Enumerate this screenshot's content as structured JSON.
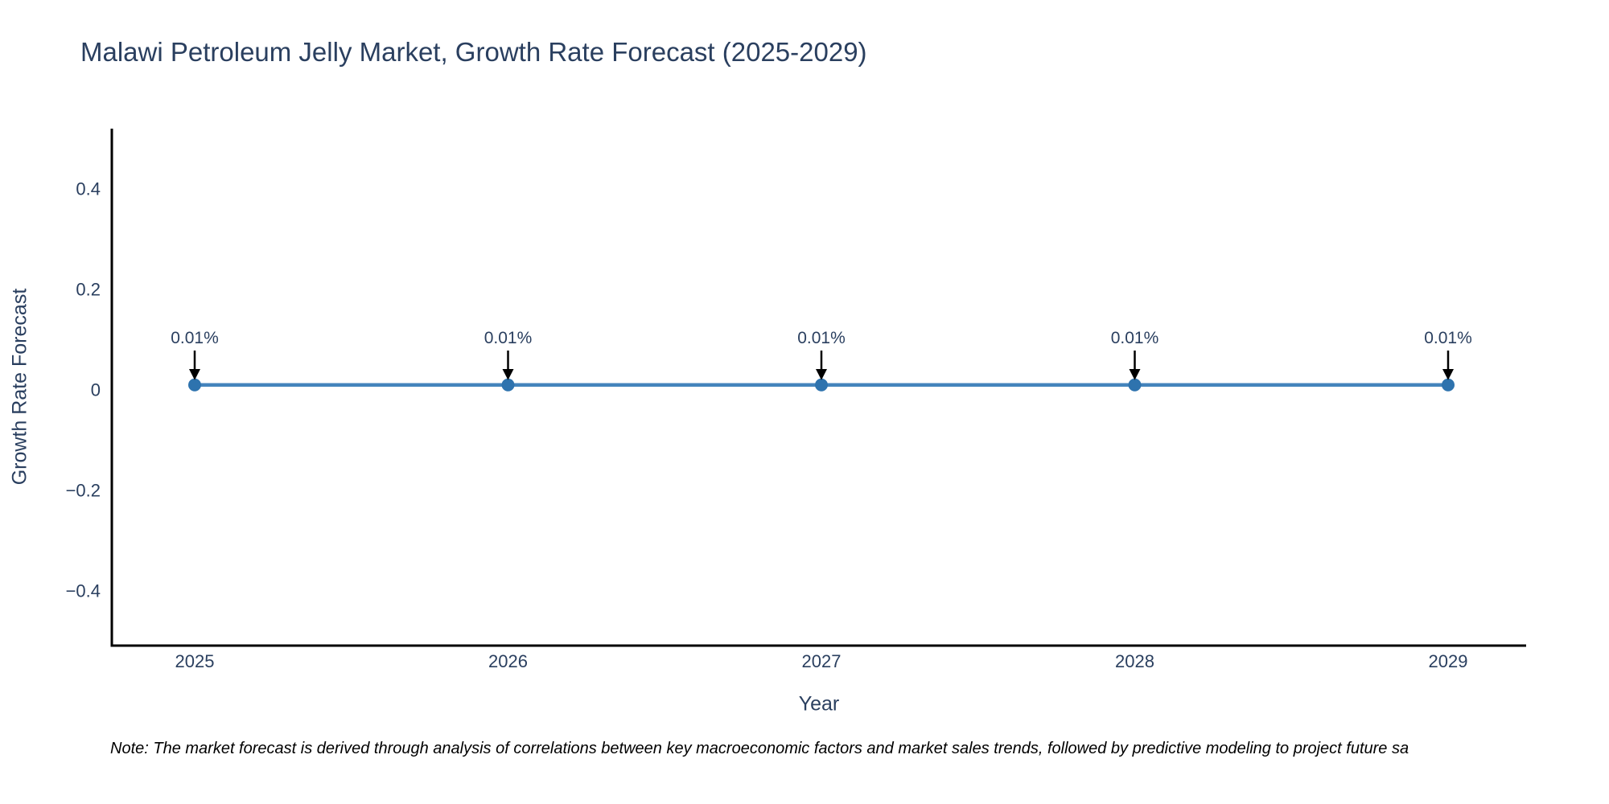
{
  "title": "Malawi Petroleum Jelly Market, Growth Rate Forecast (2025-2029)",
  "note": "Note: The market forecast is derived through analysis of correlations between key macroeconomic factors and market sales trends, followed by predictive modeling to project future sa",
  "chart_data": {
    "type": "line",
    "title": "Malawi Petroleum Jelly Market, Growth Rate Forecast (2025-2029)",
    "xlabel": "Year",
    "ylabel": "Growth Rate Forecast",
    "x": [
      2025,
      2026,
      2027,
      2028,
      2029
    ],
    "series": [
      {
        "name": "Growth Rate Forecast",
        "values": [
          0.01,
          0.01,
          0.01,
          0.01,
          0.01
        ]
      }
    ],
    "point_labels": [
      "0.01%",
      "0.01%",
      "0.01%",
      "0.01%",
      "0.01%"
    ],
    "yticks": [
      0.4,
      0.2,
      0,
      -0.2,
      -0.4
    ],
    "ylim": [
      -0.52,
      0.52
    ],
    "xlim": [
      2024.74,
      2029.26
    ],
    "grid": false,
    "legend": false,
    "annotation_style": "text with downward arrow onto each marker",
    "colors": {
      "line": "#4484bc",
      "marker": "#2e73ae",
      "axis": "#000000",
      "text": "#2a3f5f",
      "arrow": "#000000",
      "note": "#000000"
    }
  }
}
